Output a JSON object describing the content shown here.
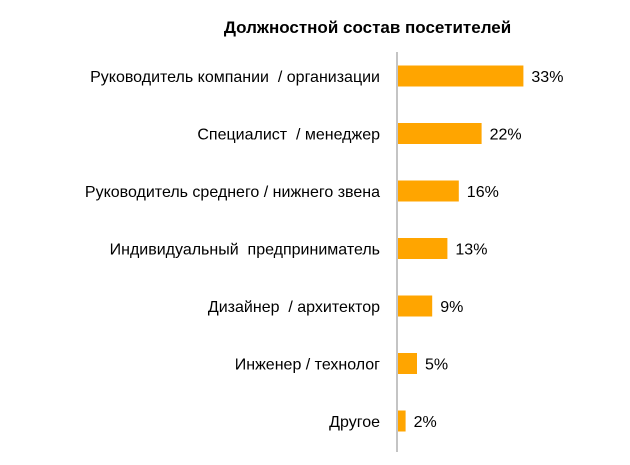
{
  "chart_data": {
    "type": "bar",
    "orientation": "horizontal",
    "title": "Должностной состав посетителей",
    "categories": [
      "Руководитель компании  / организации",
      "Специалист  / менеджер",
      "Руководитель среднего / нижнего звена",
      "Индивидуальный  предприниматель",
      "Дизайнер  / архитектор",
      "Инженер / технолог",
      "Другое"
    ],
    "values": [
      33,
      22,
      16,
      13,
      9,
      5,
      2
    ],
    "value_labels": [
      "33%",
      "22%",
      "16%",
      "13%",
      "9%",
      "5%",
      "2%"
    ],
    "unit": "%",
    "xlim": [
      0,
      40
    ],
    "grid": false,
    "legend": "none",
    "bar_color": "#FFA500",
    "axis_color": "#888888"
  }
}
